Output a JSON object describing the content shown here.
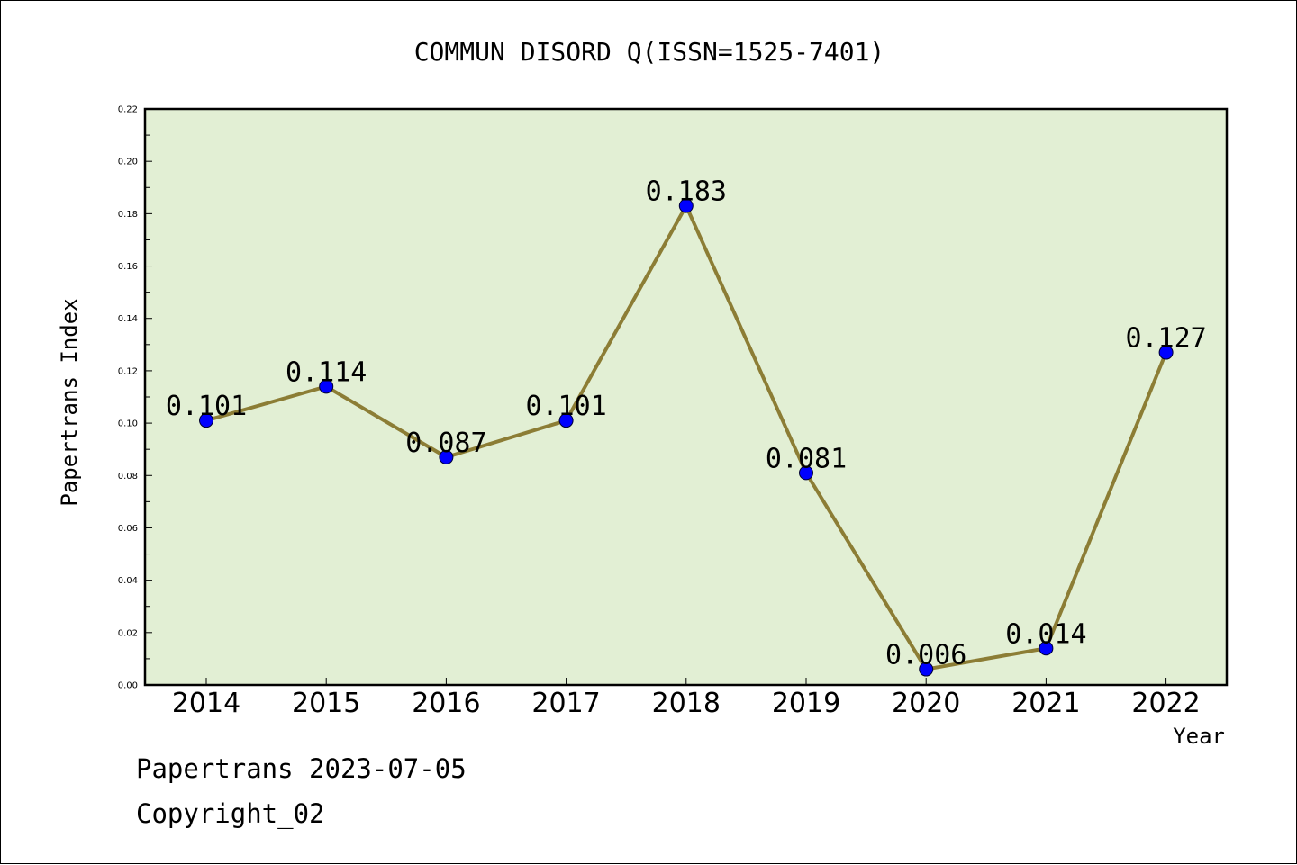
{
  "chart_data": {
    "type": "line",
    "title": "COMMUN DISORD Q(ISSN=1525-7401)",
    "xlabel": "Year",
    "ylabel": "Papertrans Index",
    "categories": [
      "2014",
      "2015",
      "2016",
      "2017",
      "2018",
      "2019",
      "2020",
      "2021",
      "2022"
    ],
    "values": [
      0.101,
      0.114,
      0.087,
      0.101,
      0.183,
      0.081,
      0.006,
      0.014,
      0.127
    ],
    "data_labels": [
      "0.101",
      "0.114",
      "0.087",
      "0.101",
      "0.183",
      "0.081",
      "0.006",
      "0.014",
      "0.127"
    ],
    "ylim": [
      0,
      0.22
    ],
    "yticks": [
      "0.00",
      "0.02",
      "0.04",
      "0.06",
      "0.08",
      "0.10",
      "0.12",
      "0.14",
      "0.16",
      "0.18",
      "0.20",
      "0.22"
    ],
    "grid": false,
    "colors": {
      "plot_background": "#e2efd4",
      "line": "#8c7d35",
      "marker": "#0000ff"
    }
  },
  "footer": {
    "date_line": "Papertrans 2023-07-05",
    "copyright": "Copyright_02"
  }
}
